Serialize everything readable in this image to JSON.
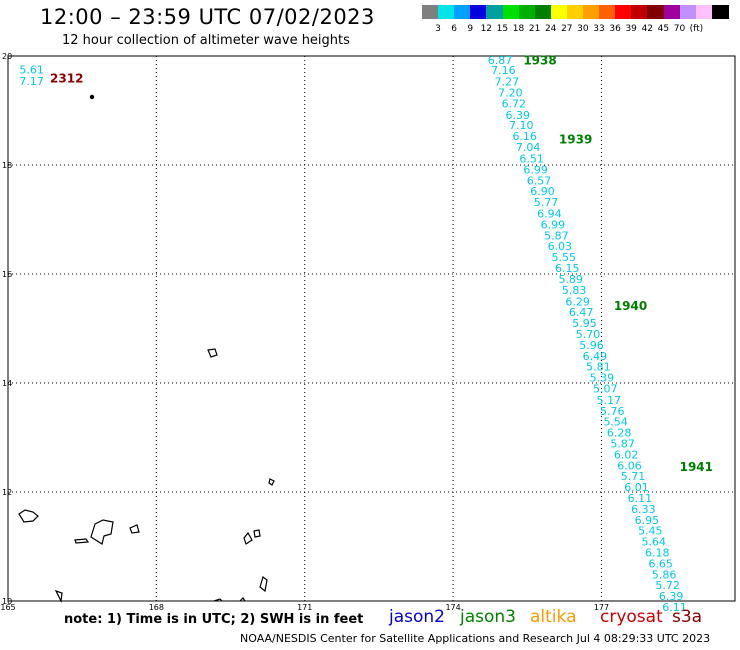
{
  "header": {
    "title": "12:00 – 23:59 UTC 07/02/2023",
    "subtitle": "12 hour collection of altimeter wave heights"
  },
  "legend": {
    "colors": [
      "#7f7f7f",
      "#00e5e5",
      "#00a0ff",
      "#0000e0",
      "#00a0a0",
      "#00e000",
      "#00b000",
      "#008000",
      "#ffff00",
      "#ffd000",
      "#ffa000",
      "#ff6000",
      "#ff0000",
      "#c00000",
      "#800000",
      "#a000a0",
      "#c090ff",
      "#ffc0ff",
      "#000000"
    ],
    "labels": [
      "3",
      "6",
      "9",
      "12",
      "15",
      "18",
      "21",
      "24",
      "27",
      "30",
      "33",
      "36",
      "39",
      "42",
      "45",
      "70"
    ],
    "unit": "(ft)"
  },
  "colors": {
    "swh_text": "#00c8e8",
    "pass_label": "#008000",
    "pass_label_red": "#8b0000",
    "grid": "#000000",
    "coast": "#000000"
  },
  "chart_data": {
    "type": "scatter",
    "title": "12:00 – 23:59 UTC 07/02/2023",
    "subtitle": "12 hour collection of altimeter wave heights",
    "xlim": [
      165,
      179.7
    ],
    "ylim": [
      10,
      20
    ],
    "x_ticks": [
      "165",
      "168",
      "171",
      "174",
      "177"
    ],
    "y_ticks": [
      "10",
      "12",
      "14",
      "16",
      "18",
      "20"
    ],
    "grid": true,
    "swh_unit": "ft",
    "series": [
      {
        "pass_labels": [
          {
            "text": "1938",
            "lon": 175.42,
            "lat": 19.92
          },
          {
            "text": "1939",
            "lon": 176.14,
            "lat": 18.47
          },
          {
            "text": "1940",
            "lon": 177.25,
            "lat": 15.41
          },
          {
            "text": "1941",
            "lon": 178.58,
            "lat": 12.46
          }
        ],
        "points": [
          {
            "lon": 174.7,
            "lat": 19.93,
            "swh": "6.87"
          },
          {
            "lon": 174.77,
            "lat": 19.74,
            "swh": "7.16"
          },
          {
            "lon": 174.84,
            "lat": 19.53,
            "swh": "7.27"
          },
          {
            "lon": 174.91,
            "lat": 19.33,
            "swh": "7.20"
          },
          {
            "lon": 174.98,
            "lat": 19.13,
            "swh": "6.72"
          },
          {
            "lon": 175.06,
            "lat": 18.92,
            "swh": "6.39"
          },
          {
            "lon": 175.13,
            "lat": 18.73,
            "swh": "7.10"
          },
          {
            "lon": 175.2,
            "lat": 18.53,
            "swh": "6.16"
          },
          {
            "lon": 175.27,
            "lat": 18.33,
            "swh": "7.04"
          },
          {
            "lon": 175.34,
            "lat": 18.12,
            "swh": "6.51"
          },
          {
            "lon": 175.42,
            "lat": 17.92,
            "swh": "6.99"
          },
          {
            "lon": 175.49,
            "lat": 17.72,
            "swh": "6.57"
          },
          {
            "lon": 175.56,
            "lat": 17.52,
            "swh": "6.90"
          },
          {
            "lon": 175.63,
            "lat": 17.32,
            "swh": "5.77"
          },
          {
            "lon": 175.7,
            "lat": 17.11,
            "swh": "6.94"
          },
          {
            "lon": 175.77,
            "lat": 16.91,
            "swh": "6.99"
          },
          {
            "lon": 175.84,
            "lat": 16.71,
            "swh": "5.87"
          },
          {
            "lon": 175.91,
            "lat": 16.51,
            "swh": "6.03"
          },
          {
            "lon": 175.99,
            "lat": 16.31,
            "swh": "5.55"
          },
          {
            "lon": 176.06,
            "lat": 16.11,
            "swh": "6.15"
          },
          {
            "lon": 176.13,
            "lat": 15.91,
            "swh": "5.89"
          },
          {
            "lon": 176.2,
            "lat": 15.71,
            "swh": "5.83"
          },
          {
            "lon": 176.27,
            "lat": 15.5,
            "swh": "6.29"
          },
          {
            "lon": 176.34,
            "lat": 15.3,
            "swh": "6.47"
          },
          {
            "lon": 176.41,
            "lat": 15.1,
            "swh": "5.95"
          },
          {
            "lon": 176.48,
            "lat": 14.9,
            "swh": "5.70"
          },
          {
            "lon": 176.55,
            "lat": 14.7,
            "swh": "5.96"
          },
          {
            "lon": 176.62,
            "lat": 14.5,
            "swh": "6.49"
          },
          {
            "lon": 176.69,
            "lat": 14.3,
            "swh": "5.81"
          },
          {
            "lon": 176.76,
            "lat": 14.1,
            "swh": "5.39"
          },
          {
            "lon": 176.83,
            "lat": 13.9,
            "swh": "5.07"
          },
          {
            "lon": 176.9,
            "lat": 13.69,
            "swh": "5.17"
          },
          {
            "lon": 176.97,
            "lat": 13.49,
            "swh": "5.76"
          },
          {
            "lon": 177.04,
            "lat": 13.29,
            "swh": "5.54"
          },
          {
            "lon": 177.11,
            "lat": 13.09,
            "swh": "6.28"
          },
          {
            "lon": 177.18,
            "lat": 12.89,
            "swh": "5.87"
          },
          {
            "lon": 177.25,
            "lat": 12.69,
            "swh": "6.02"
          },
          {
            "lon": 177.32,
            "lat": 12.49,
            "swh": "6.06"
          },
          {
            "lon": 177.39,
            "lat": 12.29,
            "swh": "5.71"
          },
          {
            "lon": 177.46,
            "lat": 12.09,
            "swh": "6.01"
          },
          {
            "lon": 177.53,
            "lat": 11.89,
            "swh": "6.11"
          },
          {
            "lon": 177.6,
            "lat": 11.69,
            "swh": "6.33"
          },
          {
            "lon": 177.67,
            "lat": 11.49,
            "swh": "6.95"
          },
          {
            "lon": 177.74,
            "lat": 11.29,
            "swh": "5.45"
          },
          {
            "lon": 177.81,
            "lat": 11.09,
            "swh": "5.64"
          },
          {
            "lon": 177.88,
            "lat": 10.89,
            "swh": "6.18"
          },
          {
            "lon": 177.95,
            "lat": 10.69,
            "swh": "6.65"
          },
          {
            "lon": 178.02,
            "lat": 10.49,
            "swh": "5.86"
          },
          {
            "lon": 178.09,
            "lat": 10.29,
            "swh": "5.72"
          },
          {
            "lon": 178.16,
            "lat": 10.09,
            "swh": "6.39"
          },
          {
            "lon": 178.23,
            "lat": 9.89,
            "swh": "6.11"
          }
        ]
      },
      {
        "pass_labels": [
          {
            "text": "2312",
            "lon": 165.85,
            "lat": 19.59
          }
        ],
        "points": [
          {
            "lon": 165.23,
            "lat": 19.75,
            "swh": "5.61"
          },
          {
            "lon": 165.23,
            "lat": 19.54,
            "swh": "7.17"
          }
        ]
      }
    ]
  },
  "footer": {
    "note": "note: 1) Time is in UTC; 2) SWH is in feet",
    "satellites": [
      {
        "name": "jason2",
        "color": "#0000e0"
      },
      {
        "name": "jason3",
        "color": "#008000"
      },
      {
        "name": "altika",
        "color": "#ff9900"
      },
      {
        "name": "cryosat",
        "color": "#cc0000"
      },
      {
        "name": "s3a",
        "color": "#8b0000"
      }
    ],
    "credit": "NOAA/NESDIS Center for Satellite Applications and Research     Jul  4 08:29:33 UTC 2023"
  }
}
